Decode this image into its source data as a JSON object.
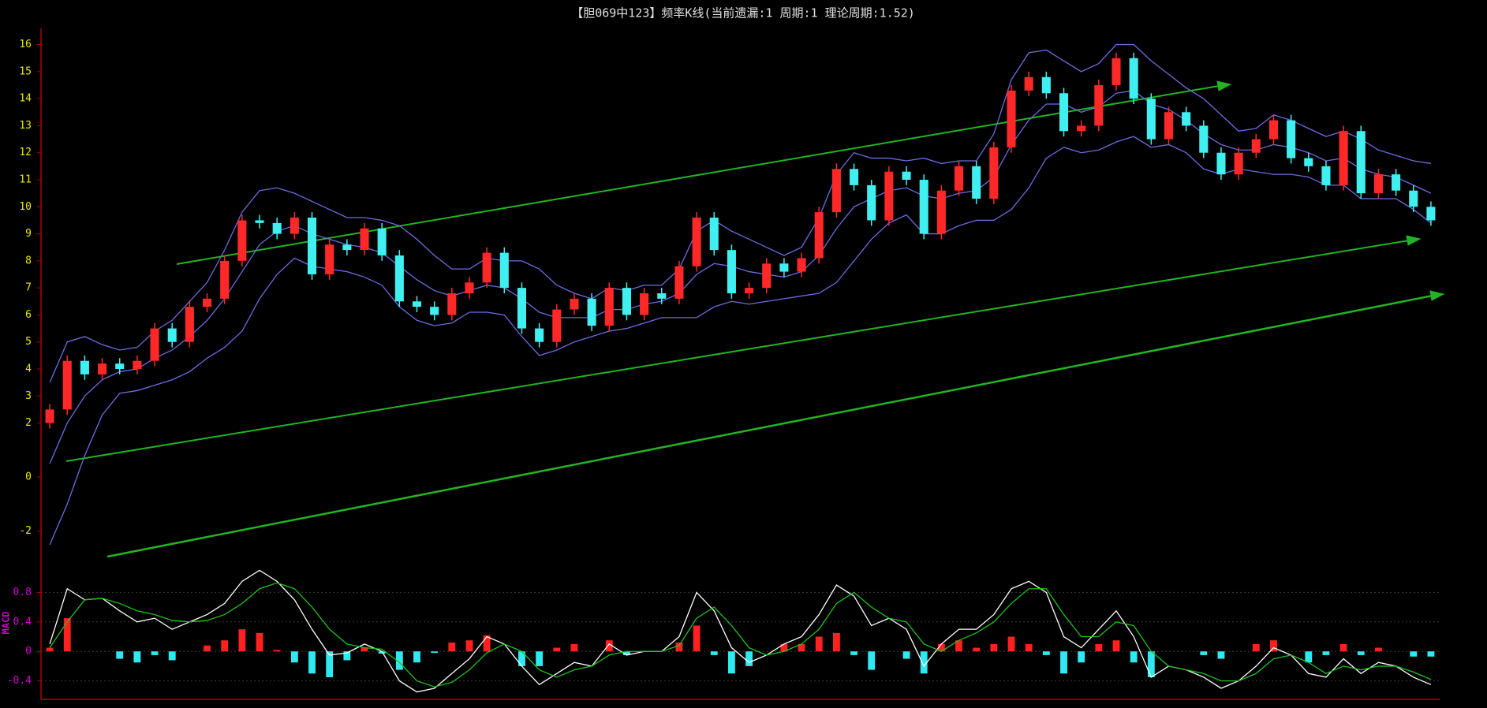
{
  "chart_data": [
    {
      "type": "candlestick",
      "title": "【胆069中123】频率K线(当前遗漏:1 周期:1 理论周期:1.52)",
      "up_color": "#ff2828",
      "down_color": "#40f0f0",
      "band_color": "#6c6ce0",
      "tick_color": "#e8e800",
      "ylim": [
        -3,
        16.6
      ],
      "yticks": [
        16,
        15,
        14,
        13,
        12,
        11,
        10,
        9,
        8,
        7,
        6,
        5,
        4,
        3,
        2,
        0,
        -2
      ],
      "open": [
        2.0,
        2.5,
        4.3,
        3.8,
        4.2,
        4.0,
        4.3,
        5.5,
        5.0,
        6.3,
        6.6,
        8.0,
        9.5,
        9.4,
        9.0,
        9.6,
        7.5,
        8.6,
        8.4,
        9.2,
        8.2,
        6.5,
        6.3,
        6.0,
        6.8,
        7.2,
        8.3,
        7.0,
        5.5,
        5.0,
        6.2,
        6.6,
        5.6,
        7.0,
        6.0,
        6.8,
        6.6,
        7.8,
        9.6,
        8.4,
        6.8,
        7.0,
        7.9,
        7.6,
        8.1,
        9.8,
        11.4,
        10.8,
        9.5,
        11.3,
        11.0,
        9.0,
        10.6,
        11.5,
        10.3,
        12.2,
        14.3,
        14.8,
        14.2,
        12.8,
        13.0,
        14.5,
        15.5,
        14.0,
        12.5,
        13.5,
        13.0,
        12.0,
        11.2,
        12.0,
        12.5,
        13.2,
        11.8,
        11.5,
        10.8,
        12.8,
        10.5,
        11.2,
        10.6,
        10.0
      ],
      "high": [
        2.7,
        4.5,
        4.5,
        4.4,
        4.4,
        4.5,
        5.7,
        5.7,
        6.5,
        6.8,
        8.2,
        9.7,
        9.7,
        9.6,
        9.8,
        9.8,
        8.8,
        8.8,
        9.4,
        9.4,
        8.4,
        6.7,
        6.5,
        7.0,
        7.4,
        8.5,
        8.5,
        7.2,
        5.7,
        6.4,
        6.8,
        6.8,
        7.2,
        7.2,
        7.0,
        7.0,
        8.0,
        9.8,
        9.8,
        8.6,
        7.2,
        8.1,
        8.1,
        8.3,
        10.0,
        11.6,
        11.6,
        11.0,
        11.5,
        11.5,
        11.2,
        10.8,
        11.7,
        11.7,
        12.4,
        14.5,
        15.0,
        15.0,
        14.4,
        13.2,
        14.7,
        15.7,
        15.7,
        14.2,
        13.7,
        13.7,
        13.2,
        12.2,
        12.2,
        12.7,
        13.4,
        13.4,
        12.0,
        11.7,
        13.0,
        13.0,
        11.4,
        11.4,
        10.8,
        10.2
      ],
      "low": [
        1.8,
        2.3,
        3.6,
        3.6,
        3.8,
        3.8,
        4.1,
        4.8,
        4.8,
        6.1,
        6.4,
        7.8,
        9.2,
        8.8,
        8.8,
        7.3,
        7.3,
        8.2,
        8.2,
        8.0,
        6.3,
        6.1,
        5.8,
        5.8,
        6.6,
        7.0,
        6.8,
        5.3,
        4.8,
        4.8,
        6.0,
        5.4,
        5.4,
        5.8,
        5.8,
        6.4,
        6.4,
        7.6,
        8.2,
        6.6,
        6.6,
        6.8,
        7.4,
        7.4,
        7.9,
        9.6,
        10.6,
        9.3,
        9.3,
        10.8,
        8.8,
        8.8,
        10.4,
        10.1,
        10.1,
        12.0,
        14.1,
        14.0,
        12.6,
        12.6,
        12.8,
        14.3,
        13.8,
        12.3,
        12.3,
        12.8,
        11.8,
        11.0,
        11.0,
        11.8,
        12.3,
        11.6,
        11.3,
        10.6,
        10.6,
        10.3,
        10.3,
        10.4,
        9.8,
        9.3
      ],
      "close": [
        2.5,
        4.3,
        3.8,
        4.2,
        4.0,
        4.3,
        5.5,
        5.0,
        6.3,
        6.6,
        8.0,
        9.5,
        9.4,
        9.0,
        9.6,
        7.5,
        8.6,
        8.4,
        9.2,
        8.2,
        6.5,
        6.3,
        6.0,
        6.8,
        7.2,
        8.3,
        7.0,
        5.5,
        5.0,
        6.2,
        6.6,
        5.6,
        7.0,
        6.0,
        6.8,
        6.6,
        7.8,
        9.6,
        8.4,
        6.8,
        7.0,
        7.9,
        7.6,
        8.1,
        9.8,
        11.4,
        10.8,
        9.5,
        11.3,
        11.0,
        9.0,
        10.6,
        11.5,
        10.3,
        12.2,
        14.3,
        14.8,
        14.2,
        12.8,
        13.0,
        14.5,
        15.5,
        14.0,
        12.5,
        13.5,
        13.0,
        12.0,
        11.2,
        12.0,
        12.5,
        13.2,
        11.8,
        11.5,
        10.8,
        12.8,
        10.5,
        11.2,
        10.6,
        10.0,
        9.5
      ],
      "bands": [
        {
          "values": [
            3.5,
            5.0,
            5.2,
            4.9,
            4.7,
            4.8,
            5.4,
            5.8,
            6.5,
            7.2,
            8.4,
            9.8,
            10.6,
            10.7,
            10.5,
            10.2,
            9.9,
            9.6,
            9.6,
            9.5,
            9.3,
            8.8,
            8.2,
            7.7,
            7.7,
            8.1,
            8.0,
            8.0,
            7.7,
            7.1,
            6.8,
            6.6,
            7.0,
            6.9,
            7.1,
            7.1,
            7.7,
            9.1,
            9.5,
            9.1,
            8.8,
            8.5,
            8.2,
            8.5,
            9.6,
            11.2,
            12.0,
            11.8,
            11.8,
            11.7,
            11.8,
            11.6,
            11.7,
            11.7,
            12.7,
            14.7,
            15.7,
            15.8,
            15.4,
            15.0,
            15.3,
            16.0,
            16.0,
            15.4,
            14.9,
            14.4,
            14.0,
            13.4,
            12.8,
            12.9,
            13.4,
            13.2,
            12.9,
            12.6,
            12.8,
            12.5,
            12.1,
            11.9,
            11.7,
            11.6
          ]
        },
        {
          "values": [
            0.5,
            2.0,
            3.0,
            3.6,
            3.9,
            4.0,
            4.4,
            4.7,
            5.2,
            5.8,
            6.6,
            7.6,
            8.6,
            9.1,
            9.3,
            9.0,
            8.8,
            8.6,
            8.5,
            8.3,
            7.8,
            7.3,
            6.9,
            6.7,
            6.9,
            7.1,
            7.0,
            6.6,
            6.1,
            5.9,
            5.9,
            5.9,
            6.2,
            6.2,
            6.4,
            6.5,
            6.8,
            7.5,
            7.9,
            7.8,
            7.6,
            7.5,
            7.4,
            7.6,
            8.2,
            9.2,
            10.0,
            10.3,
            10.6,
            10.7,
            10.4,
            10.3,
            10.5,
            10.6,
            11.1,
            12.3,
            13.2,
            13.8,
            13.8,
            13.5,
            13.7,
            14.2,
            14.3,
            13.8,
            13.6,
            13.2,
            12.7,
            12.3,
            12.1,
            12.1,
            12.3,
            12.2,
            12.0,
            11.7,
            11.8,
            11.4,
            11.2,
            11.1,
            10.8,
            10.5
          ]
        },
        {
          "values": [
            -2.5,
            -1.0,
            0.8,
            2.3,
            3.1,
            3.2,
            3.4,
            3.6,
            3.9,
            4.4,
            4.8,
            5.4,
            6.6,
            7.5,
            8.1,
            7.8,
            7.7,
            7.6,
            7.4,
            7.1,
            6.3,
            5.8,
            5.6,
            5.7,
            6.1,
            6.1,
            6.0,
            5.2,
            4.5,
            4.7,
            5.0,
            5.2,
            5.4,
            5.5,
            5.7,
            5.9,
            5.9,
            5.9,
            6.3,
            6.5,
            6.4,
            6.5,
            6.6,
            6.7,
            6.8,
            7.2,
            8.0,
            8.8,
            9.4,
            9.7,
            9.0,
            9.0,
            9.3,
            9.5,
            9.5,
            9.9,
            10.7,
            11.8,
            12.2,
            12.0,
            12.1,
            12.4,
            12.6,
            12.2,
            12.3,
            12.0,
            11.4,
            11.2,
            11.4,
            11.3,
            11.2,
            11.2,
            11.1,
            10.8,
            10.8,
            10.3,
            10.3,
            10.3,
            9.9,
            9.4
          ]
        }
      ]
    },
    {
      "type": "macd",
      "label": "MACD",
      "tick_color": "#d000d0",
      "grid": true,
      "ylim": [
        -0.65,
        1.2
      ],
      "yticks": [
        0.8,
        0.4,
        0,
        -0.4
      ],
      "up_color": "#ff2020",
      "down_color": "#30e8f0",
      "hist": [
        0.05,
        0.45,
        0.0,
        0.0,
        -0.1,
        -0.15,
        -0.05,
        -0.12,
        0.0,
        0.08,
        0.15,
        0.3,
        0.25,
        0.02,
        -0.15,
        -0.3,
        -0.35,
        -0.12,
        0.05,
        -0.03,
        -0.25,
        -0.15,
        -0.02,
        0.12,
        0.15,
        0.22,
        0.0,
        -0.2,
        -0.2,
        0.05,
        0.1,
        0.0,
        0.15,
        -0.05,
        0.0,
        0.0,
        0.12,
        0.35,
        -0.05,
        -0.3,
        -0.2,
        0.0,
        0.1,
        0.1,
        0.2,
        0.25,
        -0.05,
        -0.25,
        0.0,
        -0.1,
        -0.3,
        0.1,
        0.15,
        0.05,
        0.1,
        0.2,
        0.1,
        -0.05,
        -0.3,
        -0.15,
        0.1,
        0.15,
        -0.15,
        -0.35,
        0.0,
        0.0,
        -0.05,
        -0.1,
        0.0,
        0.1,
        0.15,
        0.0,
        -0.15,
        -0.05,
        0.1,
        -0.05,
        0.05,
        0.0,
        -0.07,
        -0.07
      ],
      "series": [
        {
          "color": "#ffffff",
          "values": [
            0.1,
            0.85,
            0.7,
            0.72,
            0.55,
            0.4,
            0.45,
            0.3,
            0.4,
            0.5,
            0.65,
            0.95,
            1.1,
            0.95,
            0.7,
            0.3,
            -0.05,
            -0.02,
            0.1,
            0.0,
            -0.4,
            -0.55,
            -0.5,
            -0.3,
            -0.1,
            0.2,
            0.1,
            -0.2,
            -0.45,
            -0.3,
            -0.15,
            -0.2,
            0.1,
            -0.05,
            0.0,
            0.0,
            0.2,
            0.8,
            0.55,
            0.05,
            -0.15,
            -0.05,
            0.1,
            0.2,
            0.5,
            0.9,
            0.75,
            0.35,
            0.45,
            0.3,
            -0.2,
            0.1,
            0.3,
            0.3,
            0.5,
            0.85,
            0.95,
            0.8,
            0.2,
            0.05,
            0.3,
            0.55,
            0.2,
            -0.35,
            -0.2,
            -0.25,
            -0.35,
            -0.5,
            -0.4,
            -0.2,
            0.05,
            -0.05,
            -0.3,
            -0.35,
            -0.1,
            -0.3,
            -0.15,
            -0.2,
            -0.35,
            -0.45
          ]
        },
        {
          "color": "#20c020",
          "values": [
            0.05,
            0.4,
            0.7,
            0.72,
            0.65,
            0.55,
            0.5,
            0.42,
            0.4,
            0.42,
            0.5,
            0.65,
            0.85,
            0.93,
            0.85,
            0.6,
            0.3,
            0.1,
            0.05,
            0.03,
            -0.15,
            -0.4,
            -0.48,
            -0.42,
            -0.25,
            -0.02,
            0.1,
            0.0,
            -0.25,
            -0.35,
            -0.25,
            -0.2,
            -0.05,
            0.0,
            0.0,
            0.0,
            0.08,
            0.45,
            0.6,
            0.35,
            0.05,
            -0.05,
            0.0,
            0.1,
            0.3,
            0.65,
            0.8,
            0.6,
            0.45,
            0.4,
            0.1,
            0.0,
            0.15,
            0.25,
            0.4,
            0.65,
            0.85,
            0.85,
            0.5,
            0.2,
            0.2,
            0.4,
            0.35,
            0.0,
            -0.2,
            -0.25,
            -0.3,
            -0.4,
            -0.4,
            -0.3,
            -0.1,
            -0.05,
            -0.15,
            -0.3,
            -0.2,
            -0.25,
            -0.2,
            -0.2,
            -0.28,
            -0.38
          ]
        }
      ]
    }
  ]
}
